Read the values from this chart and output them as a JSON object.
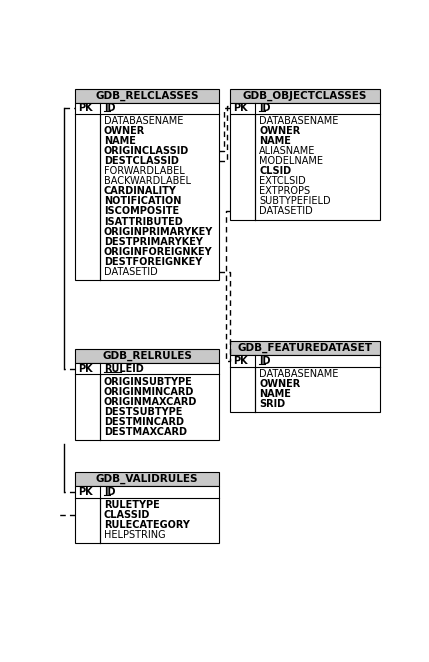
{
  "tables": [
    {
      "name": "GDB_RELCLASSES",
      "col": 0,
      "row": 0,
      "pk_label": "ID",
      "rows": [
        {
          "label": "DATABASENAME",
          "bold": false
        },
        {
          "label": "OWNER",
          "bold": true
        },
        {
          "label": "NAME",
          "bold": true
        },
        {
          "label": "ORIGINCLASSID",
          "bold": true
        },
        {
          "label": "DESTCLASSID",
          "bold": true
        },
        {
          "label": "FORWARDLABEL",
          "bold": false
        },
        {
          "label": "BACKWARDLABEL",
          "bold": false
        },
        {
          "label": "CARDINALITY",
          "bold": true
        },
        {
          "label": "NOTIFICATION",
          "bold": true
        },
        {
          "label": "ISCOMPOSITE",
          "bold": true
        },
        {
          "label": "ISATTRIBUTED",
          "bold": true
        },
        {
          "label": "ORIGINPRIMARYKEY",
          "bold": true
        },
        {
          "label": "DESTPRIMARYKEY",
          "bold": true
        },
        {
          "label": "ORIGINFOREIGNKEY",
          "bold": true
        },
        {
          "label": "DESTFOREIGNKEY",
          "bold": true
        },
        {
          "label": "DATASETID",
          "bold": false
        }
      ]
    },
    {
      "name": "GDB_OBJECTCLASSES",
      "col": 1,
      "row": 0,
      "pk_label": "ID",
      "rows": [
        {
          "label": "DATABASENAME",
          "bold": false
        },
        {
          "label": "OWNER",
          "bold": true
        },
        {
          "label": "NAME",
          "bold": true
        },
        {
          "label": "ALIASNAME",
          "bold": false
        },
        {
          "label": "MODELNAME",
          "bold": false
        },
        {
          "label": "CLSID",
          "bold": true
        },
        {
          "label": "EXTCLSID",
          "bold": false
        },
        {
          "label": "EXTPROPS",
          "bold": false
        },
        {
          "label": "SUBTYPEFIELD",
          "bold": false
        },
        {
          "label": "DATASETID",
          "bold": false
        }
      ]
    },
    {
      "name": "GDB_FEATUREDATASET",
      "col": 1,
      "row": 1,
      "pk_label": "ID",
      "rows": [
        {
          "label": "DATABASENAME",
          "bold": false
        },
        {
          "label": "OWNER",
          "bold": true
        },
        {
          "label": "NAME",
          "bold": true
        },
        {
          "label": "SRID",
          "bold": true
        }
      ]
    },
    {
      "name": "GDB_RELRULES",
      "col": 0,
      "row": 1,
      "pk_label": "RULEID",
      "rows": [
        {
          "label": "ORIGINSUBTYPE",
          "bold": true
        },
        {
          "label": "ORIGINMINCARD",
          "bold": true
        },
        {
          "label": "ORIGINMAXCARD",
          "bold": true
        },
        {
          "label": "DESTSUBTYPE",
          "bold": true
        },
        {
          "label": "DESTMINCARD",
          "bold": true
        },
        {
          "label": "DESTMAXCARD",
          "bold": true
        }
      ]
    },
    {
      "name": "GDB_VALIDRULES",
      "col": 0,
      "row": 2,
      "pk_label": "ID",
      "rows": [
        {
          "label": "RULETYPE",
          "bold": true
        },
        {
          "label": "CLASSID",
          "bold": true
        },
        {
          "label": "RULECATEGORY",
          "bold": true
        },
        {
          "label": "HELPSTRING",
          "bold": false
        }
      ]
    }
  ],
  "header_bg": "#c8c8c8",
  "table_bg": "#ffffff",
  "border_color": "#000000",
  "font_size": 7.0,
  "title_font_size": 7.5
}
